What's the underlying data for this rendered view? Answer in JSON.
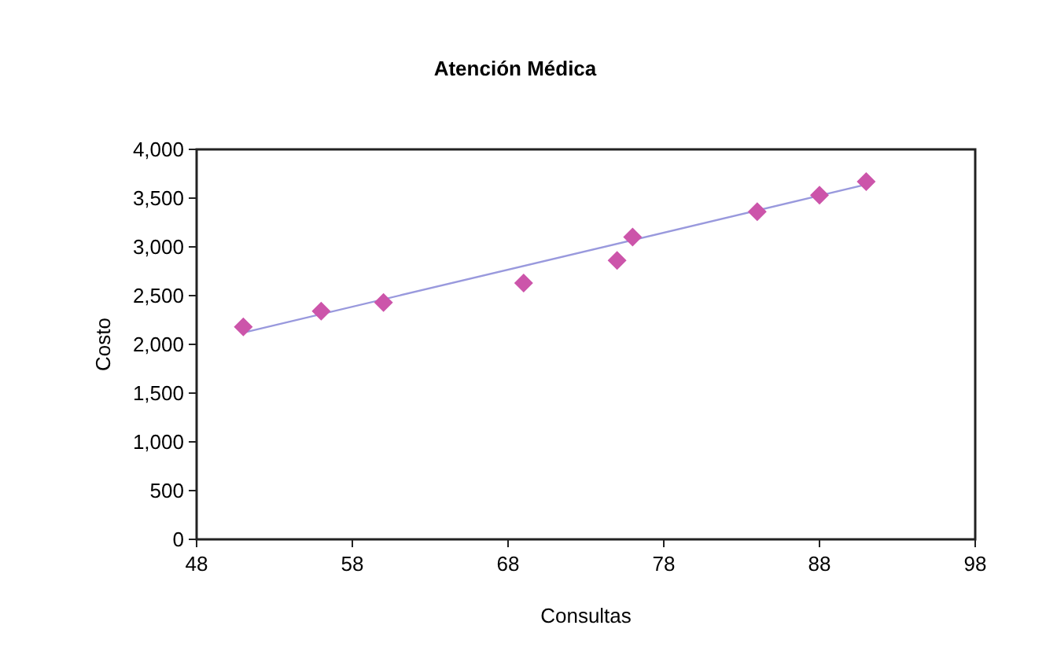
{
  "chart_data": {
    "type": "scatter",
    "title": "Atención Médica",
    "xlabel": "Consultas",
    "ylabel": "Costo",
    "xlim": [
      48,
      98
    ],
    "xticks": [
      48,
      58,
      68,
      78,
      88,
      98
    ],
    "ylim": [
      0,
      4000
    ],
    "yticks": [
      {
        "value": 0,
        "label": "0"
      },
      {
        "value": 500,
        "label": "500"
      },
      {
        "value": 1000,
        "label": "1,000"
      },
      {
        "value": 1500,
        "label": "1,500"
      },
      {
        "value": 2000,
        "label": "2,000"
      },
      {
        "value": 2500,
        "label": "2,500"
      },
      {
        "value": 3000,
        "label": "3,000"
      },
      {
        "value": 3500,
        "label": "3,500"
      },
      {
        "value": 4000,
        "label": "4,000"
      }
    ],
    "grid": false,
    "marker": "diamond",
    "series": [
      {
        "color": "#cc55aa",
        "x": [
          51,
          56,
          60,
          69,
          75,
          76,
          84,
          88,
          91
        ],
        "values": [
          2180,
          2340,
          2430,
          2630,
          2860,
          3100,
          3360,
          3530,
          3670
        ]
      },
      {
        "type": "line",
        "color": "#9999dd",
        "marker": "none",
        "x": [
          51,
          91
        ],
        "values": [
          2120,
          3640
        ]
      }
    ]
  }
}
